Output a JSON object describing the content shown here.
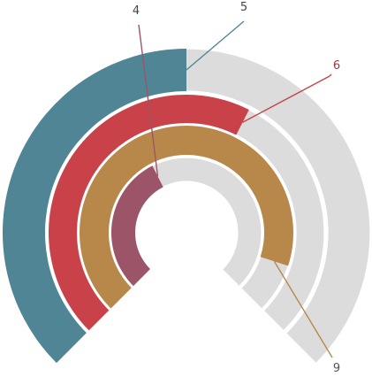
{
  "chart_data": {
    "type": "radial-bar",
    "title": "",
    "max": 10,
    "arc_degrees": 270,
    "track_color": "#dcdcdc",
    "background": "#ffffff",
    "rings": [
      {
        "value": 5,
        "label": "5",
        "color": "#4f8594"
      },
      {
        "value": 6,
        "label": "6",
        "color": "#c9424a"
      },
      {
        "value": 9,
        "label": "9",
        "color": "#b8884a"
      },
      {
        "value": 4,
        "label": "4",
        "color": "#9b5468"
      }
    ]
  }
}
